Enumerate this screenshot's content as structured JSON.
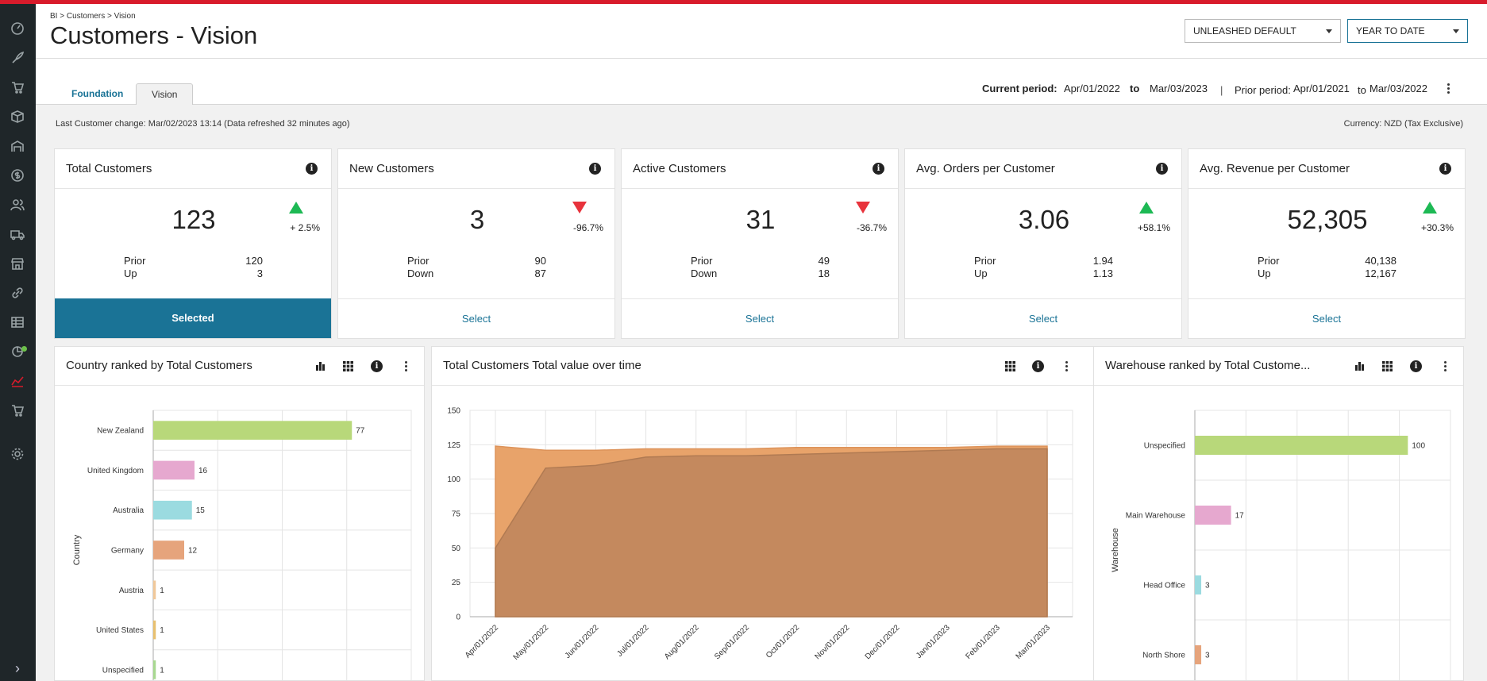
{
  "breadcrumb": "BI > Customers > Vision",
  "title": "Customers - Vision",
  "selects": {
    "group": "UNLEASHED DEFAULT",
    "range": "YEAR TO DATE"
  },
  "tabs": {
    "foundation": "Foundation",
    "vision": "Vision"
  },
  "period": {
    "current_label": "Current period:",
    "current_from": "Apr/01/2022",
    "to": "to",
    "current_to": "Mar/03/2023",
    "separator": "|",
    "prior_label": "Prior period:",
    "prior_from": "Apr/01/2021",
    "prior_to": "Mar/03/2022"
  },
  "last_change": "Last Customer change: Mar/02/2023 13:14 (Data refreshed 32 minutes ago)",
  "currency": "Currency:  NZD (Tax Exclusive)",
  "kpis": [
    {
      "title": "Total Customers",
      "value": "123",
      "direction": "up",
      "change": "+ 2.5%",
      "prior_label": "Prior",
      "prior": "120",
      "delta_label": "Up",
      "delta": "3",
      "button": "Selected",
      "selected": true
    },
    {
      "title": "New Customers",
      "value": "3",
      "direction": "down",
      "change": "-96.7%",
      "prior_label": "Prior",
      "prior": "90",
      "delta_label": "Down",
      "delta": "87",
      "button": "Select",
      "selected": false
    },
    {
      "title": "Active Customers",
      "value": "31",
      "direction": "down",
      "change": "-36.7%",
      "prior_label": "Prior",
      "prior": "49",
      "delta_label": "Down",
      "delta": "18",
      "button": "Select",
      "selected": false
    },
    {
      "title": "Avg. Orders per Customer",
      "value": "3.06",
      "direction": "up",
      "change": "+58.1%",
      "prior_label": "Prior",
      "prior": "1.94",
      "delta_label": "Up",
      "delta": "1.13",
      "button": "Select",
      "selected": false
    },
    {
      "title": "Avg. Revenue per Customer",
      "value": "52,305",
      "direction": "up",
      "change": "+30.3%",
      "prior_label": "Prior",
      "prior": "40,138",
      "delta_label": "Up",
      "delta": "12,167",
      "button": "Select",
      "selected": false
    }
  ],
  "panels": {
    "country": {
      "title": "Country ranked by Total Customers"
    },
    "overtime": {
      "title": "Total Customers Total value over time"
    },
    "warehouse": {
      "title": "Warehouse ranked by Total Custome..."
    }
  },
  "colors": {
    "accent": "#1a7396",
    "brand_bar": "#d81b2b",
    "up": "#1db954",
    "down": "#e8333c"
  },
  "icons": {
    "sidebar": [
      "dashboard-icon",
      "rocket-icon",
      "cart-icon",
      "box-icon",
      "warehouse-icon",
      "dollar-icon",
      "users-icon",
      "truck-icon",
      "store-icon",
      "link-icon",
      "table-icon",
      "analytics-icon",
      "trend-icon",
      "shopping-cart-icon",
      "settings-icon"
    ]
  },
  "chart_data": [
    {
      "type": "bar",
      "orientation": "horizontal",
      "ylabel": "Country",
      "categories": [
        "New Zealand",
        "United Kingdom",
        "Australia",
        "Germany",
        "Austria",
        "United States",
        "Unspecified"
      ],
      "values": [
        77,
        16,
        15,
        12,
        1,
        1,
        1
      ],
      "colors": [
        "#b8d87a",
        "#e6a8cf",
        "#9bdbe0",
        "#e6a47c",
        "#f0c89a",
        "#e8c070",
        "#a8d890"
      ],
      "xlim": [
        0,
        100
      ],
      "grid": true
    },
    {
      "type": "area",
      "x": [
        "Apr/01/2022",
        "May/01/2022",
        "Jun/01/2022",
        "Jul/01/2022",
        "Aug/01/2022",
        "Sep/01/2022",
        "Oct/01/2022",
        "Nov/01/2022",
        "Dec/01/2022",
        "Jan/01/2023",
        "Feb/01/2023",
        "Mar/01/2023"
      ],
      "series": [
        {
          "values": [
            124,
            121,
            121,
            122,
            122,
            122,
            123,
            123,
            123,
            123,
            124,
            124
          ],
          "color": "#e8a36a"
        },
        {
          "values": [
            50,
            108,
            110,
            116,
            117,
            117,
            118,
            119,
            120,
            121,
            122,
            122
          ],
          "color": "#c4895e"
        }
      ],
      "yticks": [
        0,
        25,
        50,
        75,
        100,
        125,
        150
      ],
      "ylim": [
        0,
        150
      ],
      "grid": true
    },
    {
      "type": "bar",
      "orientation": "horizontal",
      "ylabel": "Warehouse",
      "categories": [
        "Unspecified",
        "Main Warehouse",
        "Head Office",
        "North Shore"
      ],
      "values": [
        100,
        17,
        3,
        3
      ],
      "colors": [
        "#b8d87a",
        "#e6a8cf",
        "#9bdbe0",
        "#e6a47c"
      ],
      "xlim": [
        0,
        120
      ],
      "grid": true
    }
  ]
}
